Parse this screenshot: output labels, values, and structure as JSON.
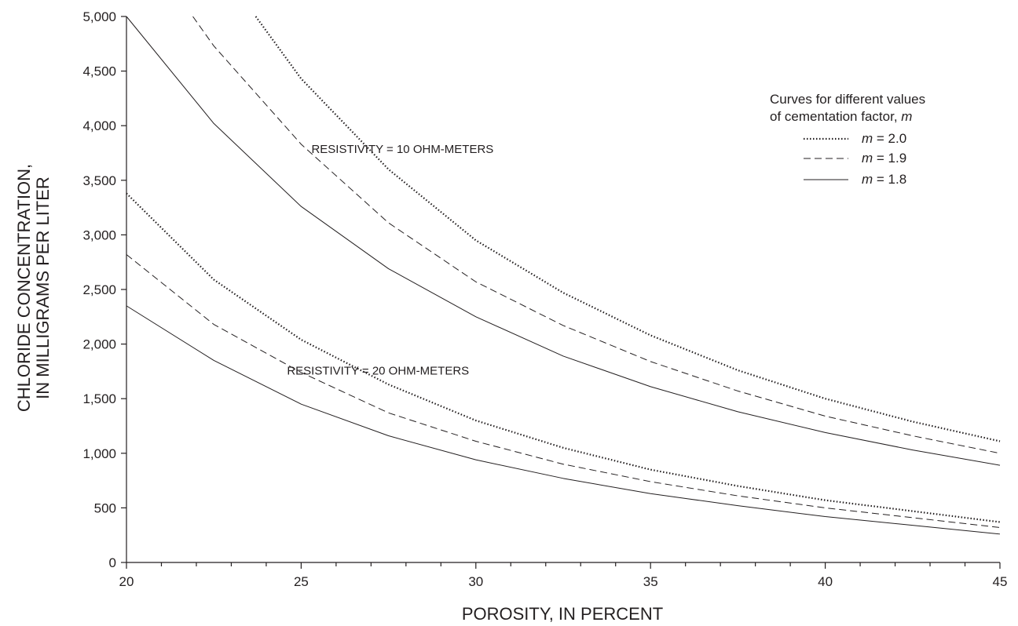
{
  "chart_data": {
    "type": "line",
    "xlabel": "POROSITY, IN PERCENT",
    "ylabel_lines": [
      "CHLORIDE CONCENTRATION,",
      "IN MILLIGRAMS PER LITER"
    ],
    "xlim": [
      20,
      45
    ],
    "ylim": [
      0,
      5000
    ],
    "x_ticks": [
      20,
      25,
      30,
      35,
      40,
      45
    ],
    "x_tick_labels": [
      "20",
      "25",
      "30",
      "35",
      "40",
      "45"
    ],
    "y_ticks": [
      0,
      500,
      1000,
      1500,
      2000,
      2500,
      3000,
      3500,
      4000,
      4500,
      5000
    ],
    "y_tick_labels": [
      "0",
      "500",
      "1,000",
      "1,500",
      "2,000",
      "2,500",
      "3,000",
      "3,500",
      "4,000",
      "4,500",
      "5,000"
    ],
    "grid": false,
    "annotations": [
      {
        "text": "RESISTIVITY = 10 OHM-METERS",
        "x": 27.9,
        "y": 3750
      },
      {
        "text": "RESISTIVITY = 20 OHM-METERS",
        "x": 27.2,
        "y": 1720
      }
    ],
    "legend": {
      "position": "top-right",
      "title_line1": "Curves for different values",
      "title_line2_prefix": "of cementation factor, ",
      "title_line2_var": "m",
      "entries": [
        {
          "var": "m",
          "value": " = 2.0",
          "style": "dotted"
        },
        {
          "var": "m",
          "value": " = 1.9",
          "style": "dashed"
        },
        {
          "var": "m",
          "value": " = 1.8",
          "style": "solid"
        }
      ]
    },
    "series": [
      {
        "group": "resistivity-10",
        "style": "dotted",
        "x": [
          23.7,
          25,
          27.5,
          30,
          32.5,
          35,
          37.5,
          40,
          42.5,
          45
        ],
        "y": [
          5000,
          4430,
          3600,
          2950,
          2470,
          2080,
          1760,
          1500,
          1290,
          1110
        ]
      },
      {
        "group": "resistivity-10",
        "style": "dashed",
        "x": [
          21.9,
          22.5,
          25,
          27.5,
          30,
          32.5,
          35,
          37.5,
          40,
          42.5,
          45
        ],
        "y": [
          5000,
          4730,
          3830,
          3110,
          2570,
          2170,
          1840,
          1570,
          1340,
          1160,
          1000
        ]
      },
      {
        "group": "resistivity-10",
        "style": "solid",
        "x": [
          20,
          22.5,
          25,
          27.5,
          30,
          32.5,
          35,
          37.5,
          40,
          42.5,
          45
        ],
        "y": [
          5000,
          4020,
          3260,
          2690,
          2250,
          1890,
          1610,
          1380,
          1190,
          1030,
          890
        ]
      },
      {
        "group": "resistivity-20",
        "style": "dotted",
        "x": [
          20,
          22.5,
          25,
          27.5,
          30,
          32.5,
          35,
          37.5,
          40,
          42.5,
          45
        ],
        "y": [
          3380,
          2590,
          2040,
          1630,
          1300,
          1050,
          850,
          700,
          570,
          470,
          370
        ]
      },
      {
        "group": "resistivity-20",
        "style": "dashed",
        "x": [
          20,
          22.5,
          25,
          27.5,
          30,
          32.5,
          35,
          37.5,
          40,
          42.5,
          45
        ],
        "y": [
          2820,
          2180,
          1740,
          1370,
          1110,
          900,
          740,
          610,
          500,
          410,
          320
        ]
      },
      {
        "group": "resistivity-20",
        "style": "solid",
        "x": [
          20,
          22.5,
          25,
          27.5,
          30,
          32.5,
          35,
          37.5,
          40,
          42.5,
          45
        ],
        "y": [
          2350,
          1850,
          1450,
          1160,
          940,
          770,
          630,
          520,
          420,
          340,
          260
        ]
      }
    ]
  }
}
